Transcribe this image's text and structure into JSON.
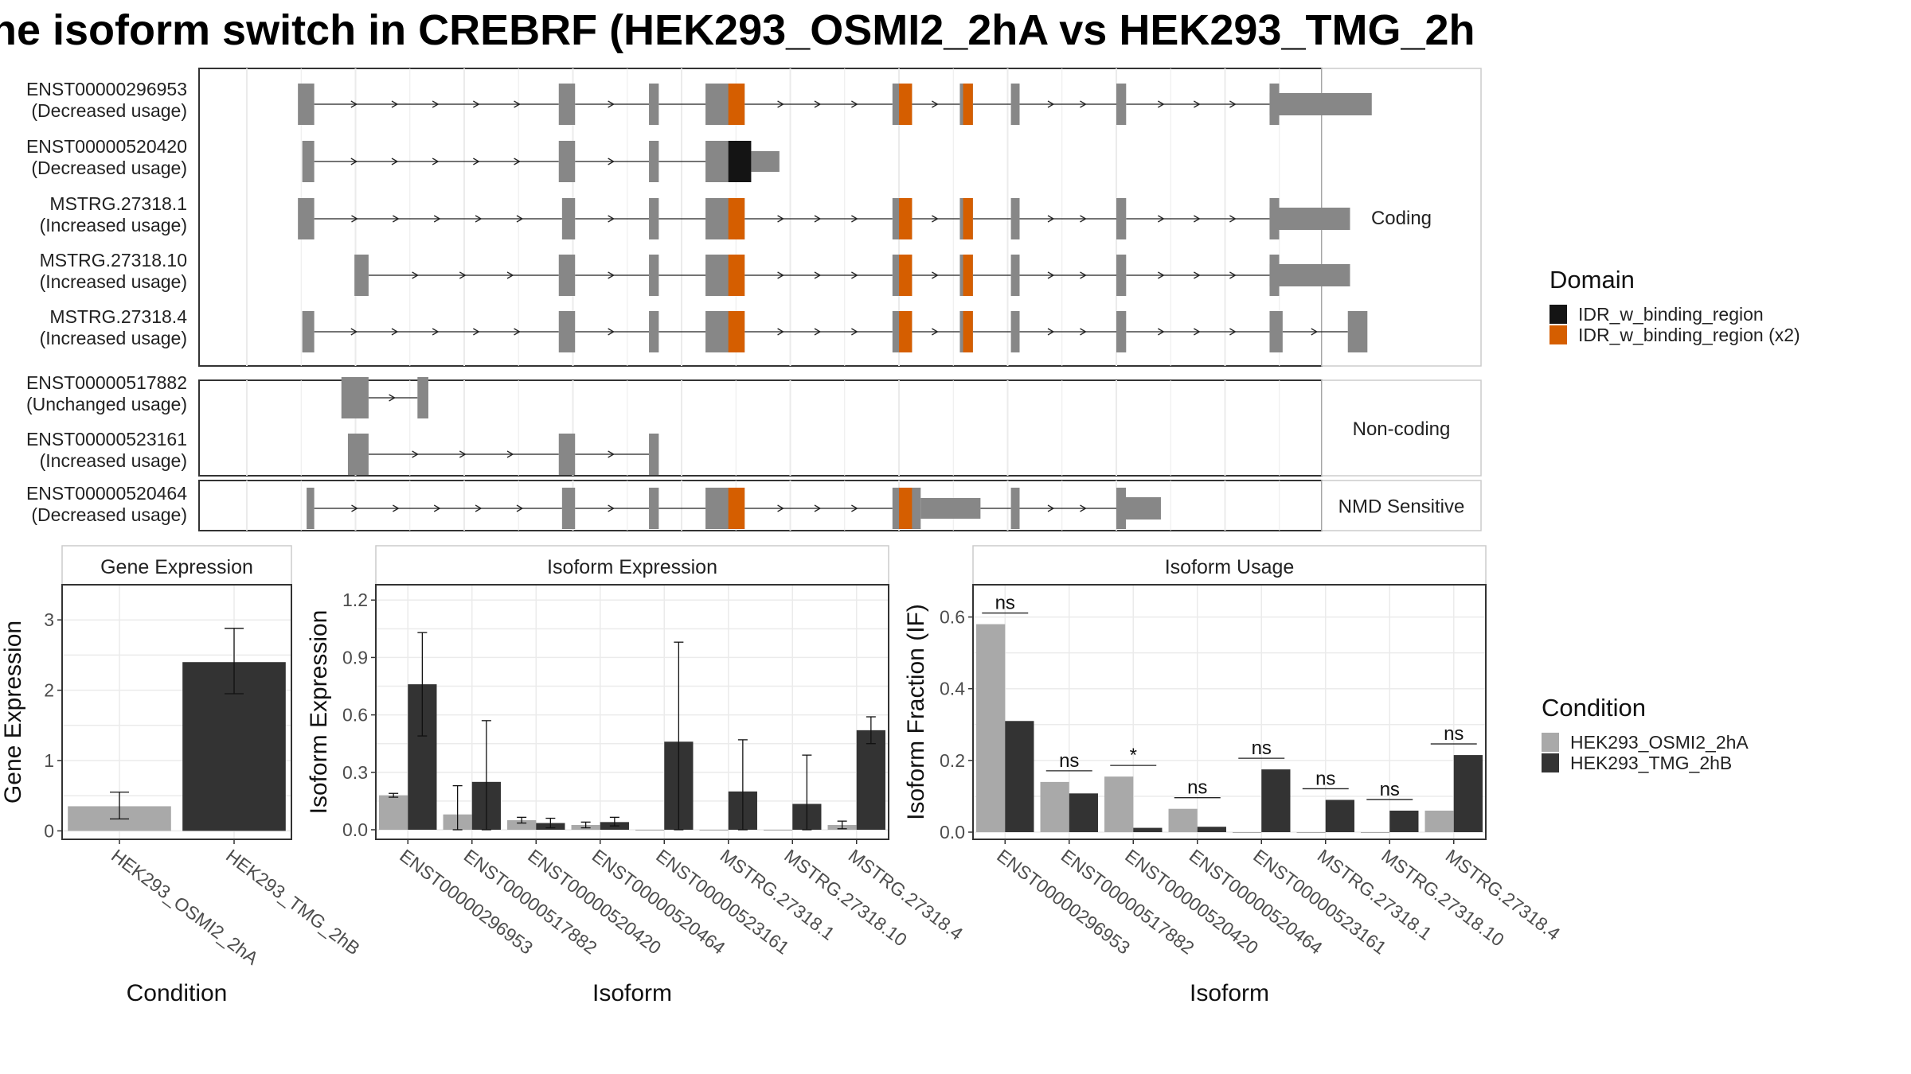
{
  "figure": {
    "title": "he isoform switch in CREBRF (HEK293_OSMI2_2hA vs HEK293_TMG_2h"
  },
  "colors": {
    "exon": "#878787",
    "intron": "#222222",
    "domain_idr": "#141414",
    "domain_idr_x2": "#d55e00",
    "cond1": "#a9a9a9",
    "cond2": "#333333",
    "grid": "#ebebeb",
    "panel_border": "#333333",
    "strip_border": "#cccccc"
  },
  "structure": {
    "xlim": [
      0,
      1000
    ],
    "groups": [
      {
        "label": "Coding",
        "rows": [
          0,
          1,
          2,
          3,
          4
        ]
      },
      {
        "label": "Non-coding",
        "rows": [
          5,
          6
        ]
      },
      {
        "label": "NMD Sensitive",
        "rows": [
          7
        ]
      }
    ],
    "transcripts": [
      {
        "id": "ENST00000296953",
        "usage": "(Decreased usage)",
        "exons": [
          [
            47,
            62
          ],
          [
            287,
            302
          ],
          [
            370,
            379
          ],
          [
            422,
            458
          ],
          [
            594,
            612
          ],
          [
            656,
            668
          ],
          [
            703,
            711
          ],
          [
            800,
            809
          ],
          [
            941,
            1035
          ]
        ],
        "domains": [
          [
            443,
            458,
            "x2"
          ],
          [
            600,
            612,
            "x2"
          ],
          [
            659,
            668,
            "x2"
          ]
        ]
      },
      {
        "id": "ENST00000520420",
        "usage": "(Decreased usage)",
        "exons": [
          [
            51,
            62
          ],
          [
            287,
            302
          ],
          [
            370,
            379
          ],
          [
            422,
            490
          ]
        ],
        "domains": [
          [
            443,
            464,
            "idr"
          ]
        ]
      },
      {
        "id": "MSTRG.27318.1",
        "usage": "(Increased usage)",
        "exons": [
          [
            47,
            62
          ],
          [
            290,
            302
          ],
          [
            370,
            379
          ],
          [
            422,
            458
          ],
          [
            594,
            612
          ],
          [
            656,
            668
          ],
          [
            703,
            711
          ],
          [
            800,
            809
          ],
          [
            941,
            1015
          ]
        ],
        "domains": [
          [
            443,
            458,
            "x2"
          ],
          [
            600,
            612,
            "x2"
          ],
          [
            659,
            668,
            "x2"
          ]
        ]
      },
      {
        "id": "MSTRG.27318.10",
        "usage": "(Increased usage)",
        "exons": [
          [
            99,
            112
          ],
          [
            287,
            302
          ],
          [
            370,
            379
          ],
          [
            422,
            458
          ],
          [
            594,
            612
          ],
          [
            656,
            668
          ],
          [
            703,
            711
          ],
          [
            800,
            809
          ],
          [
            941,
            1015
          ]
        ],
        "domains": [
          [
            443,
            458,
            "x2"
          ],
          [
            600,
            612,
            "x2"
          ],
          [
            659,
            668,
            "x2"
          ]
        ]
      },
      {
        "id": "MSTRG.27318.4",
        "usage": "(Increased usage)",
        "exons": [
          [
            51,
            62
          ],
          [
            287,
            302
          ],
          [
            370,
            379
          ],
          [
            422,
            458
          ],
          [
            594,
            612
          ],
          [
            656,
            668
          ],
          [
            703,
            711
          ],
          [
            800,
            809
          ],
          [
            941,
            953
          ],
          [
            1013,
            1031
          ]
        ],
        "domains": [
          [
            443,
            458,
            "x2"
          ],
          [
            600,
            612,
            "x2"
          ],
          [
            659,
            668,
            "x2"
          ]
        ]
      },
      {
        "id": "ENST00000517882",
        "usage": "(Unchanged usage)",
        "exons": [
          [
            87,
            112
          ],
          [
            157,
            167
          ]
        ],
        "domains": []
      },
      {
        "id": "ENST00000523161",
        "usage": "(Increased usage)",
        "exons": [
          [
            93,
            112
          ],
          [
            287,
            302
          ],
          [
            370,
            379
          ]
        ],
        "domains": []
      },
      {
        "id": "ENST00000520464",
        "usage": "(Decreased usage)",
        "exons": [
          [
            55,
            62
          ],
          [
            290,
            302
          ],
          [
            370,
            379
          ],
          [
            422,
            458
          ],
          [
            594,
            675
          ],
          [
            703,
            711
          ],
          [
            800,
            841
          ]
        ],
        "domains": [
          [
            443,
            458,
            "x2"
          ],
          [
            600,
            612,
            "x2"
          ]
        ]
      }
    ],
    "legend": {
      "title": "Domain",
      "items": [
        {
          "label": "IDR_w_binding_region",
          "key": "idr"
        },
        {
          "label": "IDR_w_binding_region (x2)",
          "key": "x2"
        }
      ]
    }
  },
  "chart_data": [
    {
      "type": "bar",
      "title": "Gene Expression",
      "xlabel": "Condition",
      "ylabel": "Gene Expression",
      "categories": [
        "HEK293_OSMI2_2hA",
        "HEK293_TMG_2hB"
      ],
      "values": [
        0.35,
        2.4
      ],
      "err_low": [
        0.17,
        1.95
      ],
      "err_high": [
        0.55,
        2.88
      ],
      "ylim": [
        -0.12,
        3.5
      ],
      "yticks": [
        0,
        1,
        2,
        3
      ]
    },
    {
      "type": "bar",
      "title": "Isoform Expression",
      "xlabel": "Isoform",
      "ylabel": "Isoform Expression",
      "categories": [
        "ENST00000296953",
        "ENST00000517882",
        "ENST00000520420",
        "ENST00000520464",
        "ENST00000523161",
        "MSTRG.27318.1",
        "MSTRG.27318.10",
        "MSTRG.27318.4"
      ],
      "series": [
        {
          "name": "HEK293_OSMI2_2hA",
          "values": [
            0.18,
            0.08,
            0.05,
            0.025,
            0.0,
            0.0,
            0.0,
            0.025
          ],
          "err_low": [
            0.17,
            0.0,
            0.035,
            0.01,
            null,
            null,
            null,
            0.005
          ],
          "err_high": [
            0.19,
            0.23,
            0.065,
            0.04,
            null,
            null,
            null,
            0.045
          ]
        },
        {
          "name": "HEK293_TMG_2hB",
          "values": [
            0.76,
            0.25,
            0.035,
            0.04,
            0.46,
            0.2,
            0.135,
            0.52
          ],
          "err_low": [
            0.49,
            0.0,
            0.01,
            0.02,
            0.0,
            0.0,
            0.0,
            0.45
          ],
          "err_high": [
            1.03,
            0.57,
            0.06,
            0.065,
            0.98,
            0.47,
            0.39,
            0.59
          ]
        }
      ],
      "ylim": [
        -0.05,
        1.28
      ],
      "yticks": [
        0.0,
        0.3,
        0.6,
        0.9,
        1.2
      ]
    },
    {
      "type": "bar",
      "title": "Isoform Usage",
      "xlabel": "Isoform",
      "ylabel": "Isoform Fraction (IF)",
      "categories": [
        "ENST00000296953",
        "ENST00000517882",
        "ENST00000520420",
        "ENST00000520464",
        "ENST00000523161",
        "MSTRG.27318.1",
        "MSTRG.27318.10",
        "MSTRG.27318.4"
      ],
      "series": [
        {
          "name": "HEK293_OSMI2_2hA",
          "values": [
            0.58,
            0.14,
            0.155,
            0.065,
            0.0,
            0.0,
            0.0,
            0.06
          ]
        },
        {
          "name": "HEK293_TMG_2hB",
          "values": [
            0.31,
            0.108,
            0.012,
            0.015,
            0.175,
            0.09,
            0.06,
            0.215
          ]
        }
      ],
      "significance": [
        "ns",
        "ns",
        "*",
        "ns",
        "ns",
        "ns",
        "ns",
        "ns"
      ],
      "ylim": [
        -0.02,
        0.69
      ],
      "yticks": [
        0.0,
        0.2,
        0.4,
        0.6
      ]
    }
  ],
  "condition_legend": {
    "title": "Condition",
    "items": [
      {
        "label": "HEK293_OSMI2_2hA",
        "key": "cond1"
      },
      {
        "label": "HEK293_TMG_2hB",
        "key": "cond2"
      }
    ]
  }
}
